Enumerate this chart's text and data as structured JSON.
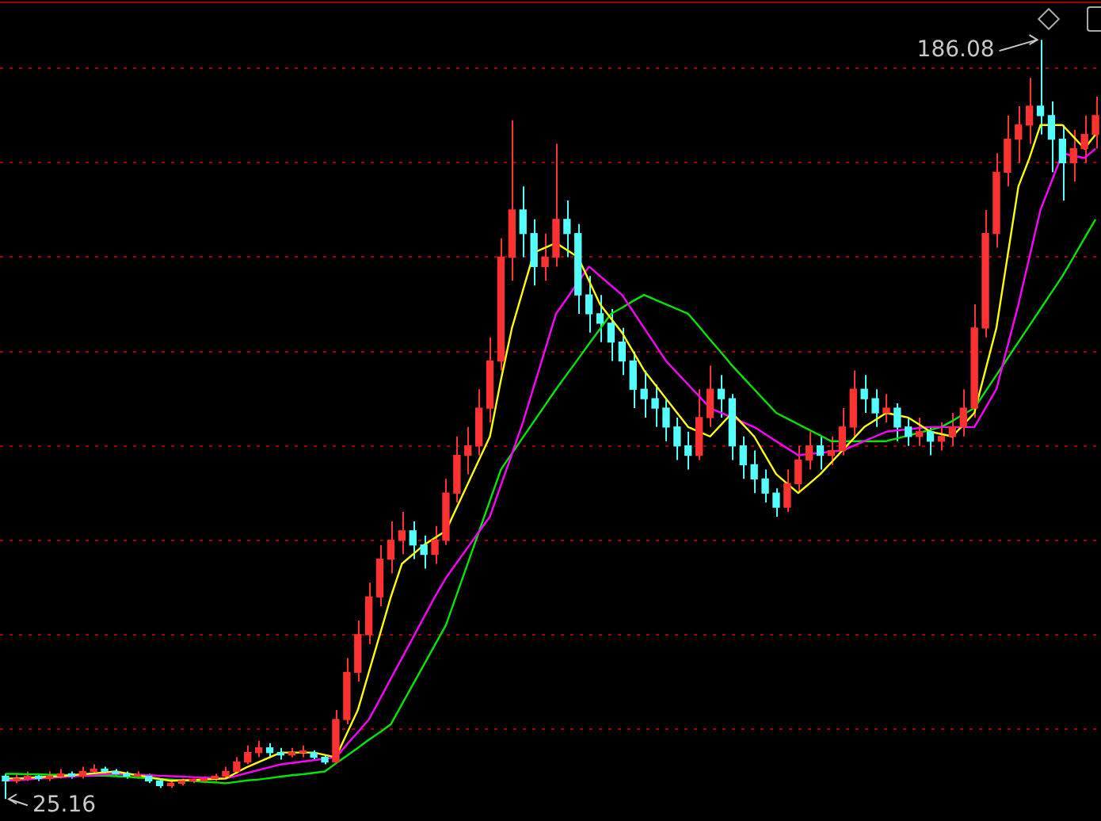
{
  "chart_data": {
    "type": "candlestick",
    "categories": [
      null,
      null,
      null,
      null,
      null,
      null,
      null,
      null,
      null,
      null,
      null,
      null,
      null,
      null,
      null,
      null,
      null,
      null,
      null,
      null,
      null,
      null,
      null,
      null,
      null,
      null,
      null,
      null,
      null,
      null,
      null,
      null,
      null,
      null,
      null,
      null,
      null,
      null,
      null,
      null,
      null,
      null,
      null,
      null,
      null,
      null,
      null,
      null,
      null,
      null,
      null,
      null,
      null,
      null,
      null,
      null,
      null,
      null,
      null,
      null,
      null,
      null,
      null,
      null,
      null,
      null,
      null,
      null,
      null,
      null,
      null,
      null,
      null,
      null,
      null,
      null,
      null,
      null,
      null,
      null,
      null,
      null,
      null,
      null,
      null,
      null,
      null,
      null,
      null,
      null,
      null,
      null,
      null,
      null,
      null,
      null,
      null,
      null,
      null,
      null
    ],
    "ohlc": [
      [
        30,
        30.5,
        25.16,
        29
      ],
      [
        29,
        30.5,
        28.5,
        29.5
      ],
      [
        29.5,
        31,
        29,
        30
      ],
      [
        30,
        30.5,
        29,
        29.5
      ],
      [
        29.5,
        31,
        29,
        30
      ],
      [
        30,
        31.5,
        29.5,
        30.5
      ],
      [
        30.5,
        31,
        29.5,
        30
      ],
      [
        30,
        32,
        29.5,
        31
      ],
      [
        31,
        32.5,
        30.5,
        31.5
      ],
      [
        31.5,
        32,
        30.5,
        31
      ],
      [
        31,
        31.5,
        30,
        30.5
      ],
      [
        30.5,
        31,
        29.5,
        30
      ],
      [
        30,
        31,
        29.5,
        30
      ],
      [
        30,
        30.5,
        28.5,
        29
      ],
      [
        29,
        29.5,
        27.5,
        28
      ],
      [
        28,
        29,
        27.5,
        28.5
      ],
      [
        28.5,
        29.5,
        28,
        29
      ],
      [
        29,
        29.5,
        28.5,
        29
      ],
      [
        29,
        30,
        28.5,
        29.5
      ],
      [
        29.5,
        30.5,
        29,
        30
      ],
      [
        30,
        32,
        29.5,
        31
      ],
      [
        31,
        34,
        30.5,
        33
      ],
      [
        33,
        36.5,
        32.5,
        35
      ],
      [
        35,
        37.5,
        34,
        36
      ],
      [
        36,
        37,
        34,
        35
      ],
      [
        35,
        36,
        33.5,
        34.5
      ],
      [
        34.5,
        36,
        34,
        35
      ],
      [
        35,
        36.5,
        34,
        35
      ],
      [
        35,
        35.5,
        33.5,
        34
      ],
      [
        34,
        34.5,
        32.5,
        33
      ],
      [
        33,
        44,
        33,
        42
      ],
      [
        42,
        55,
        41,
        52
      ],
      [
        52,
        63,
        50,
        60
      ],
      [
        60,
        71,
        58,
        68
      ],
      [
        68,
        79,
        66,
        76
      ],
      [
        76,
        84,
        73,
        80
      ],
      [
        80,
        86,
        77,
        82
      ],
      [
        82,
        84,
        76,
        79
      ],
      [
        79,
        81,
        74,
        77
      ],
      [
        77,
        83,
        75,
        80
      ],
      [
        80,
        93,
        79,
        90
      ],
      [
        90,
        102,
        88,
        98
      ],
      [
        98,
        104,
        94,
        100
      ],
      [
        100,
        112,
        98,
        108
      ],
      [
        108,
        123,
        105,
        118
      ],
      [
        118,
        144,
        116,
        140
      ],
      [
        140,
        169,
        135,
        150
      ],
      [
        150,
        155,
        140,
        145
      ],
      [
        145,
        148,
        134,
        138
      ],
      [
        138,
        145,
        135,
        140
      ],
      [
        140,
        164,
        138,
        148
      ],
      [
        148,
        152,
        140,
        145
      ],
      [
        145,
        147,
        128,
        132
      ],
      [
        132,
        136,
        124,
        128
      ],
      [
        128,
        132,
        122,
        126
      ],
      [
        126,
        129,
        118,
        122
      ],
      [
        122,
        125,
        115,
        118
      ],
      [
        118,
        120,
        108,
        112
      ],
      [
        112,
        116,
        106,
        110
      ],
      [
        110,
        113,
        104,
        108
      ],
      [
        108,
        110,
        101,
        104
      ],
      [
        104,
        106,
        97,
        100
      ],
      [
        100,
        103,
        95,
        98
      ],
      [
        98,
        112,
        97,
        106
      ],
      [
        106,
        117,
        104,
        112
      ],
      [
        112,
        115,
        106,
        110
      ],
      [
        110,
        111,
        97,
        100
      ],
      [
        100,
        102,
        93,
        96
      ],
      [
        96,
        99,
        90,
        93
      ],
      [
        93,
        95,
        88,
        90
      ],
      [
        90,
        91,
        85,
        87
      ],
      [
        87,
        95,
        86,
        92
      ],
      [
        92,
        100,
        90,
        97
      ],
      [
        97,
        103,
        95,
        100
      ],
      [
        100,
        102,
        95,
        98
      ],
      [
        98,
        102,
        96,
        99
      ],
      [
        99,
        108,
        98,
        104
      ],
      [
        104,
        116,
        102,
        112
      ],
      [
        112,
        115,
        107,
        110
      ],
      [
        110,
        112,
        104,
        107
      ],
      [
        107,
        111,
        105,
        108
      ],
      [
        108,
        109,
        101,
        104
      ],
      [
        104,
        106,
        100,
        102
      ],
      [
        102,
        106,
        100,
        103
      ],
      [
        103,
        104,
        98,
        101
      ],
      [
        101,
        105,
        99,
        102
      ],
      [
        102,
        107,
        100,
        104
      ],
      [
        104,
        112,
        102,
        108
      ],
      [
        108,
        130,
        106,
        125
      ],
      [
        125,
        150,
        123,
        145
      ],
      [
        145,
        162,
        142,
        158
      ],
      [
        158,
        170,
        155,
        165
      ],
      [
        165,
        172,
        160,
        168
      ],
      [
        168,
        178,
        164,
        172
      ],
      [
        172,
        186.08,
        166,
        170
      ],
      [
        170,
        173,
        158,
        165
      ],
      [
        165,
        168,
        152,
        160
      ],
      [
        160,
        167,
        156,
        163
      ],
      [
        163,
        170,
        160,
        166
      ],
      [
        166,
        174,
        163,
        170
      ]
    ],
    "colors": [
      "#54ffff",
      "#ff3232",
      "#ff3232",
      "#54ffff",
      "#ff3232",
      "#ff3232",
      "#54ffff",
      "#ff3232",
      "#ff3232",
      "#54ffff",
      "#54ffff",
      "#54ffff",
      "#ff3232",
      "#54ffff",
      "#54ffff",
      "#ff3232",
      "#ff3232",
      "#ff3232",
      "#ff3232",
      "#ff3232",
      "#ff3232",
      "#ff3232",
      "#ff3232",
      "#ff3232",
      "#54ffff",
      "#54ffff",
      "#ff3232",
      "#ff3232",
      "#54ffff",
      "#54ffff",
      "#ff3232",
      "#ff3232",
      "#ff3232",
      "#ff3232",
      "#ff3232",
      "#ff3232",
      "#ff3232",
      "#54ffff",
      "#54ffff",
      "#ff3232",
      "#ff3232",
      "#ff3232",
      "#ff3232",
      "#ff3232",
      "#ff3232",
      "#ff3232",
      "#ff3232",
      "#54ffff",
      "#54ffff",
      "#ff3232",
      "#ff3232",
      "#54ffff",
      "#54ffff",
      "#54ffff",
      "#54ffff",
      "#54ffff",
      "#54ffff",
      "#54ffff",
      "#54ffff",
      "#54ffff",
      "#54ffff",
      "#54ffff",
      "#54ffff",
      "#ff3232",
      "#ff3232",
      "#54ffff",
      "#54ffff",
      "#54ffff",
      "#54ffff",
      "#54ffff",
      "#54ffff",
      "#ff3232",
      "#ff3232",
      "#ff3232",
      "#54ffff",
      "#ff3232",
      "#ff3232",
      "#ff3232",
      "#54ffff",
      "#54ffff",
      "#ff3232",
      "#54ffff",
      "#54ffff",
      "#ff3232",
      "#54ffff",
      "#ff3232",
      "#ff3232",
      "#ff3232",
      "#ff3232",
      "#ff3232",
      "#ff3232",
      "#ff3232",
      "#ff3232",
      "#ff3232",
      "#54ffff",
      "#54ffff",
      "#54ffff",
      "#ff3232",
      "#ff3232",
      "#ff3232"
    ],
    "series": [
      {
        "type": "line",
        "color": "#ffff00",
        "values": [
          29.5,
          29.5,
          29.6,
          29.8,
          29.9,
          30,
          30.2,
          30.4,
          30.6,
          30.8,
          31,
          30.6,
          30.2,
          29.8,
          29.4,
          29,
          29.1,
          29.2,
          29.3,
          29.4,
          29.5,
          30.8,
          32,
          33,
          34,
          35,
          35,
          35,
          35,
          34.5,
          34,
          39,
          44,
          52,
          60,
          68,
          75,
          77,
          79,
          80.5,
          82,
          87,
          92,
          97,
          102,
          114,
          125,
          133,
          141,
          142,
          143,
          141.5,
          140,
          135,
          130,
          127,
          124,
          120,
          116,
          113,
          110,
          107,
          104,
          103,
          102,
          104.5,
          107,
          104.5,
          102,
          98,
          94,
          92,
          90,
          92,
          94,
          96.5,
          99,
          101.5,
          104,
          105.5,
          107,
          106.5,
          106,
          104.5,
          103,
          102.5,
          102,
          104.5,
          107,
          116,
          125,
          140,
          155,
          161,
          168,
          168,
          168,
          165.5,
          163,
          166
        ]
      },
      {
        "type": "line",
        "color": "#ff00ff",
        "values": [
          29,
          29.2,
          29.3,
          29.5,
          29.6,
          29.8,
          29.9,
          30.1,
          30.2,
          30.4,
          30.5,
          30.4,
          30.3,
          30.2,
          30.1,
          30,
          29.9,
          29.8,
          29.7,
          29.6,
          29.5,
          30.1,
          30.7,
          31.3,
          31.9,
          32.5,
          32.8,
          33.1,
          33.4,
          33.7,
          34,
          36.7,
          39.3,
          42,
          46.3,
          50.7,
          55,
          59.3,
          63.7,
          68,
          72,
          75.3,
          78.5,
          81.8,
          85,
          91.7,
          98.3,
          105,
          112.7,
          120.3,
          128,
          131.3,
          134.7,
          138,
          136,
          134,
          132,
          128.5,
          125,
          121.5,
          118,
          115.5,
          113,
          110.5,
          108,
          107,
          106,
          105,
          104,
          102.5,
          101,
          99.5,
          98,
          98.3,
          98.5,
          98.8,
          99,
          100,
          101,
          102,
          103,
          103.3,
          103.5,
          103.8,
          104,
          104,
          104,
          104,
          104,
          108,
          112,
          121,
          130,
          140,
          150,
          156,
          162,
          161.5,
          161,
          163
        ]
      },
      {
        "type": "line",
        "color": "#00e600",
        "values": [
          30.5,
          30.5,
          30.4,
          30.4,
          30.3,
          30.3,
          30.2,
          30.2,
          30.1,
          30.1,
          30,
          29.9,
          29.7,
          29.6,
          29.4,
          29.3,
          29.1,
          29,
          28.8,
          28.7,
          28.5,
          28.8,
          29.1,
          29.3,
          29.6,
          29.9,
          30.2,
          30.4,
          30.7,
          31,
          32.7,
          34.3,
          36,
          37.7,
          39.3,
          41,
          45.2,
          49.4,
          53.6,
          57.8,
          62,
          68.6,
          75.2,
          81.8,
          88.4,
          95,
          98.4,
          101.8,
          105.2,
          108.6,
          112,
          115.2,
          118.4,
          121.6,
          124.8,
          128,
          129.3,
          130.7,
          132,
          131,
          130,
          129,
          128,
          125.3,
          122.5,
          119.8,
          117,
          114.5,
          112,
          109.5,
          107,
          105.8,
          104.6,
          103.4,
          102.2,
          101,
          101,
          101,
          101,
          101,
          101,
          101.6,
          102.2,
          102.8,
          103.4,
          104,
          105.3,
          106.7,
          108,
          111.5,
          115,
          118.5,
          122,
          125.5,
          129,
          132.5,
          136,
          140,
          144,
          148
        ]
      }
    ],
    "ylim": [
      20.5,
      194.5
    ],
    "yticks": [
      {
        "value": 40,
        "label": null
      },
      {
        "value": 60,
        "label": null
      },
      {
        "value": 80,
        "label": null
      },
      {
        "value": 100,
        "label": null
      },
      {
        "value": 120,
        "label": null
      },
      {
        "value": 140,
        "label": null
      },
      {
        "value": 160,
        "label": null
      },
      {
        "value": 180,
        "label": null
      }
    ],
    "grid": "y",
    "legend": false,
    "annotations": [
      "186.08",
      "25.16"
    ]
  }
}
